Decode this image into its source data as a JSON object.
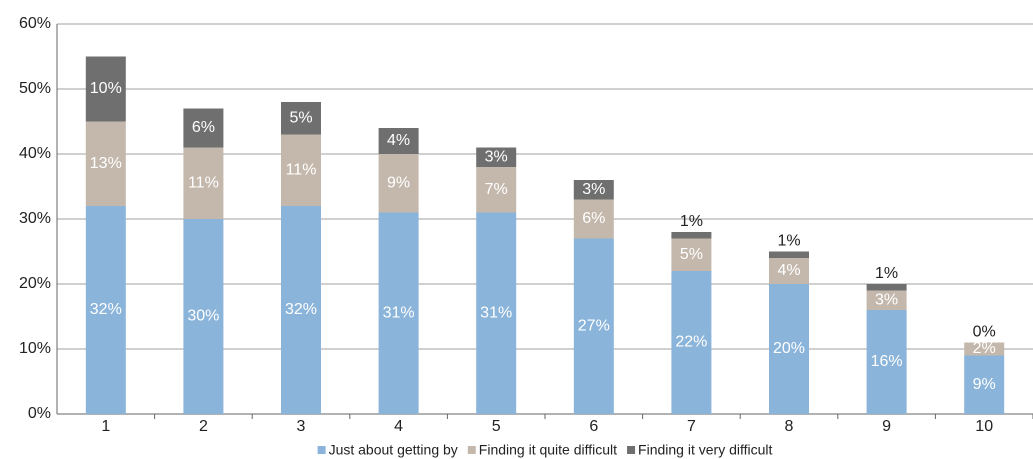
{
  "chart_data": {
    "type": "stacked_bar",
    "categories": [
      "1",
      "2",
      "3",
      "4",
      "5",
      "6",
      "7",
      "8",
      "9",
      "10"
    ],
    "series": [
      {
        "name": "Just about getting by",
        "color": "#8ab4d9",
        "values": [
          32,
          30,
          32,
          31,
          31,
          27,
          22,
          20,
          16,
          9
        ],
        "value_labels": [
          "32%",
          "30%",
          "32%",
          "31%",
          "31%",
          "27%",
          "22%",
          "20%",
          "16%",
          "9%"
        ]
      },
      {
        "name": "Finding it quite difficult",
        "color": "#c4b8ad",
        "values": [
          13,
          11,
          11,
          9,
          7,
          6,
          5,
          4,
          3,
          2
        ],
        "value_labels": [
          "13%",
          "11%",
          "11%",
          "9%",
          "7%",
          "6%",
          "5%",
          "4%",
          "3%",
          "2%"
        ]
      },
      {
        "name": "Finding it very difficult",
        "color": "#6f6f6f",
        "values": [
          10,
          6,
          5,
          4,
          3,
          3,
          1,
          1,
          1,
          0
        ],
        "value_labels": [
          "10%",
          "6%",
          "5%",
          "4%",
          "3%",
          "3%",
          "1%",
          "1%",
          "1%",
          "0%"
        ]
      }
    ],
    "ylim": [
      0,
      60
    ],
    "yticks": [
      {
        "value": 0,
        "label": "0%"
      },
      {
        "value": 10,
        "label": "10%"
      },
      {
        "value": 20,
        "label": "20%"
      },
      {
        "value": 30,
        "label": "30%"
      },
      {
        "value": 40,
        "label": "40%"
      },
      {
        "value": 50,
        "label": "50%"
      },
      {
        "value": 60,
        "label": "60%"
      }
    ],
    "grid": true,
    "legend": "bottom"
  }
}
